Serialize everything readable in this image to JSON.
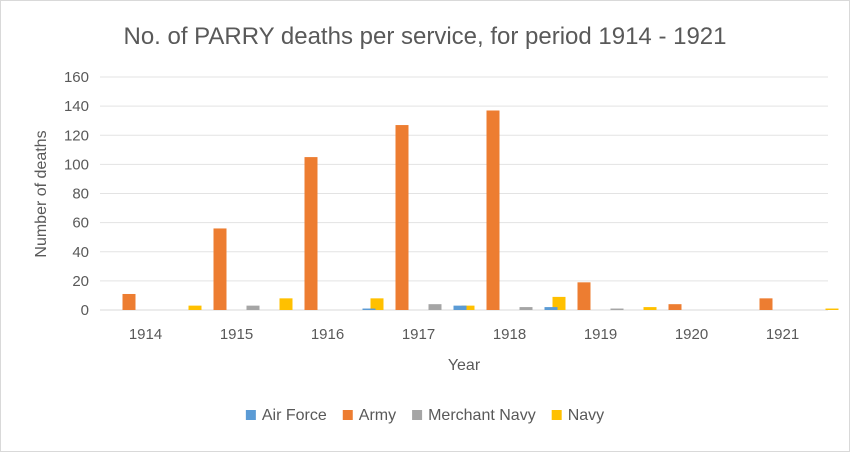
{
  "chart_data": {
    "type": "bar",
    "title": "No. of PARRY deaths per service, for period 1914 - 1921",
    "xlabel": "Year",
    "ylabel": "Number of deaths",
    "ylim": [
      0,
      160
    ],
    "yticks": [
      0,
      20,
      40,
      60,
      80,
      100,
      120,
      140,
      160
    ],
    "grid": true,
    "legend_position": "bottom",
    "categories": [
      "1914",
      "1915",
      "1916",
      "1917",
      "1918",
      "1919",
      "1920",
      "1921"
    ],
    "series": [
      {
        "name": "Air Force",
        "color": "#5b9bd5",
        "values": [
          0,
          0,
          0,
          1,
          3,
          2,
          0,
          0
        ]
      },
      {
        "name": "Army",
        "color": "#ed7d31",
        "values": [
          11,
          56,
          105,
          127,
          137,
          19,
          4,
          8
        ]
      },
      {
        "name": "Merchant Navy",
        "color": "#a5a5a5",
        "values": [
          0,
          3,
          0,
          4,
          2,
          1,
          0,
          0
        ]
      },
      {
        "name": "Navy",
        "color": "#ffc000",
        "values": [
          3,
          8,
          8,
          3,
          9,
          2,
          0,
          1
        ]
      }
    ]
  }
}
